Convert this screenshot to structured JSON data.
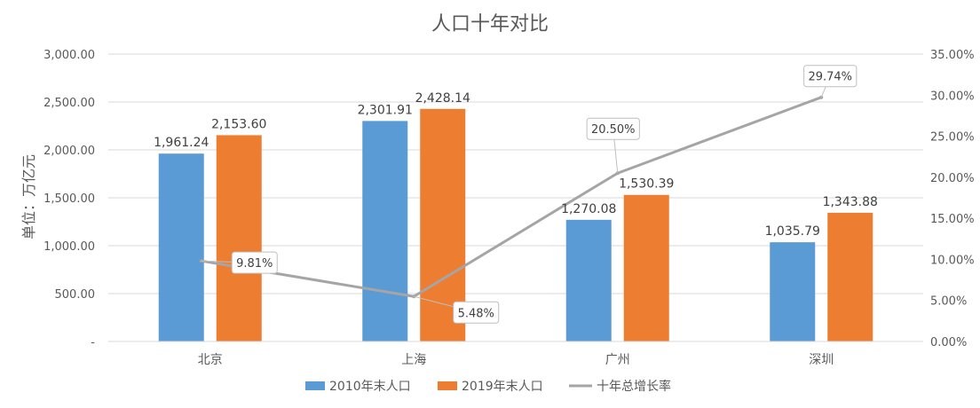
{
  "chart_data": {
    "type": "bar",
    "title": "人口十年对比",
    "ylabel": "单位：万亿元",
    "categories": [
      "北京",
      "上海",
      "广州",
      "深圳"
    ],
    "series": [
      {
        "name": "2010年末人口",
        "kind": "bar",
        "axis": "left",
        "color": "#5b9bd5",
        "values": [
          1961.24,
          2301.91,
          1270.08,
          1035.79
        ],
        "labels": [
          "1,961.24",
          "2,301.91",
          "1,270.08",
          "1,035.79"
        ]
      },
      {
        "name": "2019年末人口",
        "kind": "bar",
        "axis": "left",
        "color": "#ed7d31",
        "values": [
          2153.6,
          2428.14,
          1530.39,
          1343.88
        ],
        "labels": [
          "2,153.60",
          "2,428.14",
          "1,530.39",
          "1,343.88"
        ]
      },
      {
        "name": "十年总增长率",
        "kind": "line",
        "axis": "right",
        "color": "#a5a5a5",
        "values": [
          9.81,
          5.48,
          20.5,
          29.74
        ],
        "labels": [
          "9.81%",
          "5.48%",
          "20.50%",
          "29.74%"
        ]
      }
    ],
    "ylim": [
      0,
      3000
    ],
    "yticks": [
      "-",
      "500.00",
      "1,000.00",
      "1,500.00",
      "2,000.00",
      "2,500.00",
      "3,000.00"
    ],
    "y2lim": [
      0,
      35
    ],
    "y2ticks": [
      "0.00%",
      "5.00%",
      "10.00%",
      "15.00%",
      "20.00%",
      "25.00%",
      "30.00%",
      "35.00%"
    ],
    "grid": true,
    "legend_position": "bottom"
  }
}
